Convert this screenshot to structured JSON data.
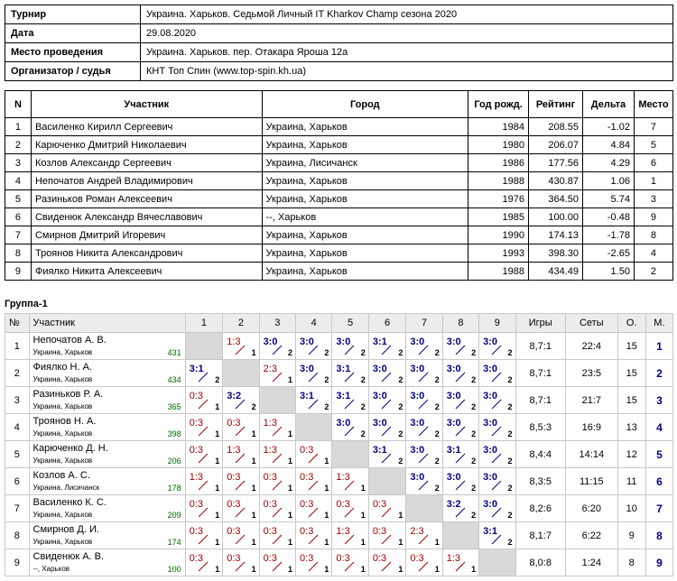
{
  "info": [
    {
      "label": "Турнир",
      "value": "Украина. Харьков. Седьмой Личный IT Kharkov Champ сезона 2020"
    },
    {
      "label": "Дата",
      "value": "29.08.2020"
    },
    {
      "label": "Место проведения",
      "value": "Украина. Харьков. пер. Отакара Яроша 12а"
    },
    {
      "label": "Организатор / судья",
      "value": "КНТ Топ Спин (www.top-spin.kh.ua)"
    }
  ],
  "participants_table": {
    "headers": [
      "N",
      "Участник",
      "Город",
      "Год рожд.",
      "Рейтинг",
      "Дельта",
      "Место"
    ],
    "rows": [
      [
        "1",
        "Василенко Кирилл Сергеевич",
        "Украина, Харьков",
        "1984",
        "208.55",
        "-1.02",
        "7"
      ],
      [
        "2",
        "Карюченко Дмитрий Николаевич",
        "Украина, Харьков",
        "1980",
        "206.07",
        "4.84",
        "5"
      ],
      [
        "3",
        "Козлов Александр Сергеевич",
        "Украина, Лисичанск",
        "1986",
        "177.56",
        "4.29",
        "6"
      ],
      [
        "4",
        "Непочатов Андрей Владимирович",
        "Украина, Харьков",
        "1988",
        "430.87",
        "1.06",
        "1"
      ],
      [
        "5",
        "Разиньков Роман Алексеевич",
        "Украина, Харьков",
        "1976",
        "364.50",
        "5.74",
        "3"
      ],
      [
        "6",
        "Свиденюк Александр Вячеславович",
        "--, Харьков",
        "1985",
        "100.00",
        "-0.48",
        "9"
      ],
      [
        "7",
        "Смирнов Дмитрий Игоревич",
        "Украина, Харьков",
        "1990",
        "174.13",
        "-1.78",
        "8"
      ],
      [
        "8",
        "Троянов Никита Александрович",
        "Украина, Харьков",
        "1993",
        "398.30",
        "-2.65",
        "4"
      ],
      [
        "9",
        "Фиялко Никита Алексеевич",
        "Украина, Харьков",
        "1988",
        "434.49",
        "1.50",
        "2"
      ]
    ]
  },
  "group": {
    "title": "Группа-1",
    "headers": {
      "num": "№",
      "player": "Участник",
      "games": "Игры",
      "sets": "Сеты",
      "o": "О.",
      "m": "М."
    },
    "cols": [
      "1",
      "2",
      "3",
      "4",
      "5",
      "6",
      "7",
      "8",
      "9"
    ],
    "rows": [
      {
        "n": "1",
        "name": "Непочатов А. В.",
        "city": "Украина, Харьков",
        "rating": "431",
        "results": [
          null,
          [
            "1:3",
            "1"
          ],
          [
            "3:0",
            "2"
          ],
          [
            "3:0",
            "2"
          ],
          [
            "3:0",
            "2"
          ],
          [
            "3:1",
            "2"
          ],
          [
            "3:0",
            "2"
          ],
          [
            "3:0",
            "2"
          ],
          [
            "3:0",
            "2"
          ]
        ],
        "games": "8,7:1",
        "sets": "22:4",
        "o": "15",
        "m": "1"
      },
      {
        "n": "2",
        "name": "Фиялко Н. А.",
        "city": "Украина, Харьков",
        "rating": "434",
        "results": [
          [
            "3:1",
            "2"
          ],
          null,
          [
            "2:3",
            "1"
          ],
          [
            "3:0",
            "2"
          ],
          [
            "3:1",
            "2"
          ],
          [
            "3:0",
            "2"
          ],
          [
            "3:0",
            "2"
          ],
          [
            "3:0",
            "2"
          ],
          [
            "3:0",
            "2"
          ]
        ],
        "games": "8,7:1",
        "sets": "23:5",
        "o": "15",
        "m": "2"
      },
      {
        "n": "3",
        "name": "Разиньков Р. А.",
        "city": "Украина, Харьков",
        "rating": "365",
        "results": [
          [
            "0:3",
            "1"
          ],
          [
            "3:2",
            "2"
          ],
          null,
          [
            "3:1",
            "2"
          ],
          [
            "3:1",
            "2"
          ],
          [
            "3:0",
            "2"
          ],
          [
            "3:0",
            "2"
          ],
          [
            "3:0",
            "2"
          ],
          [
            "3:0",
            "2"
          ]
        ],
        "games": "8,7:1",
        "sets": "21:7",
        "o": "15",
        "m": "3"
      },
      {
        "n": "4",
        "name": "Троянов Н. А.",
        "city": "Украина, Харьков",
        "rating": "398",
        "results": [
          [
            "0:3",
            "1"
          ],
          [
            "0:3",
            "1"
          ],
          [
            "1:3",
            "1"
          ],
          null,
          [
            "3:0",
            "2"
          ],
          [
            "3:0",
            "2"
          ],
          [
            "3:0",
            "2"
          ],
          [
            "3:0",
            "2"
          ],
          [
            "3:0",
            "2"
          ]
        ],
        "games": "8,5:3",
        "sets": "16:9",
        "o": "13",
        "m": "4"
      },
      {
        "n": "5",
        "name": "Карюченко Д. Н.",
        "city": "Украина, Харьков",
        "rating": "206",
        "results": [
          [
            "0:3",
            "1"
          ],
          [
            "1:3",
            "1"
          ],
          [
            "1:3",
            "1"
          ],
          [
            "0:3",
            "1"
          ],
          null,
          [
            "3:1",
            "2"
          ],
          [
            "3:0",
            "2"
          ],
          [
            "3:1",
            "2"
          ],
          [
            "3:0",
            "2"
          ]
        ],
        "games": "8,4:4",
        "sets": "14:14",
        "o": "12",
        "m": "5"
      },
      {
        "n": "6",
        "name": "Козлов А. С.",
        "city": "Украина, Лисичанск",
        "rating": "178",
        "results": [
          [
            "1:3",
            "1"
          ],
          [
            "0:3",
            "1"
          ],
          [
            "0:3",
            "1"
          ],
          [
            "0:3",
            "1"
          ],
          [
            "1:3",
            "1"
          ],
          null,
          [
            "3:0",
            "2"
          ],
          [
            "3:0",
            "2"
          ],
          [
            "3:0",
            "2"
          ]
        ],
        "games": "8,3:5",
        "sets": "11:15",
        "o": "11",
        "m": "6"
      },
      {
        "n": "7",
        "name": "Василенко К. С.",
        "city": "Украина, Харьков",
        "rating": "209",
        "results": [
          [
            "0:3",
            "1"
          ],
          [
            "0:3",
            "1"
          ],
          [
            "0:3",
            "1"
          ],
          [
            "0:3",
            "1"
          ],
          [
            "0:3",
            "1"
          ],
          [
            "0:3",
            "1"
          ],
          null,
          [
            "3:2",
            "2"
          ],
          [
            "3:0",
            "2"
          ]
        ],
        "games": "8,2:6",
        "sets": "6:20",
        "o": "10",
        "m": "7"
      },
      {
        "n": "8",
        "name": "Смирнов Д. И.",
        "city": "Украина, Харьков",
        "rating": "174",
        "results": [
          [
            "0:3",
            "1"
          ],
          [
            "0:3",
            "1"
          ],
          [
            "0:3",
            "1"
          ],
          [
            "0:3",
            "1"
          ],
          [
            "1:3",
            "1"
          ],
          [
            "0:3",
            "1"
          ],
          [
            "2:3",
            "1"
          ],
          null,
          [
            "3:1",
            "2"
          ]
        ],
        "games": "8,1:7",
        "sets": "6:22",
        "o": "9",
        "m": "8"
      },
      {
        "n": "9",
        "name": "Свиденюк А. В.",
        "city": "--, Харьков",
        "rating": "100",
        "results": [
          [
            "0:3",
            "1"
          ],
          [
            "0:3",
            "1"
          ],
          [
            "0:3",
            "1"
          ],
          [
            "0:3",
            "1"
          ],
          [
            "0:3",
            "1"
          ],
          [
            "0:3",
            "1"
          ],
          [
            "0:3",
            "1"
          ],
          [
            "1:3",
            "1"
          ],
          null
        ],
        "games": "8,0:8",
        "sets": "1:24",
        "o": "8",
        "m": "9"
      }
    ]
  }
}
